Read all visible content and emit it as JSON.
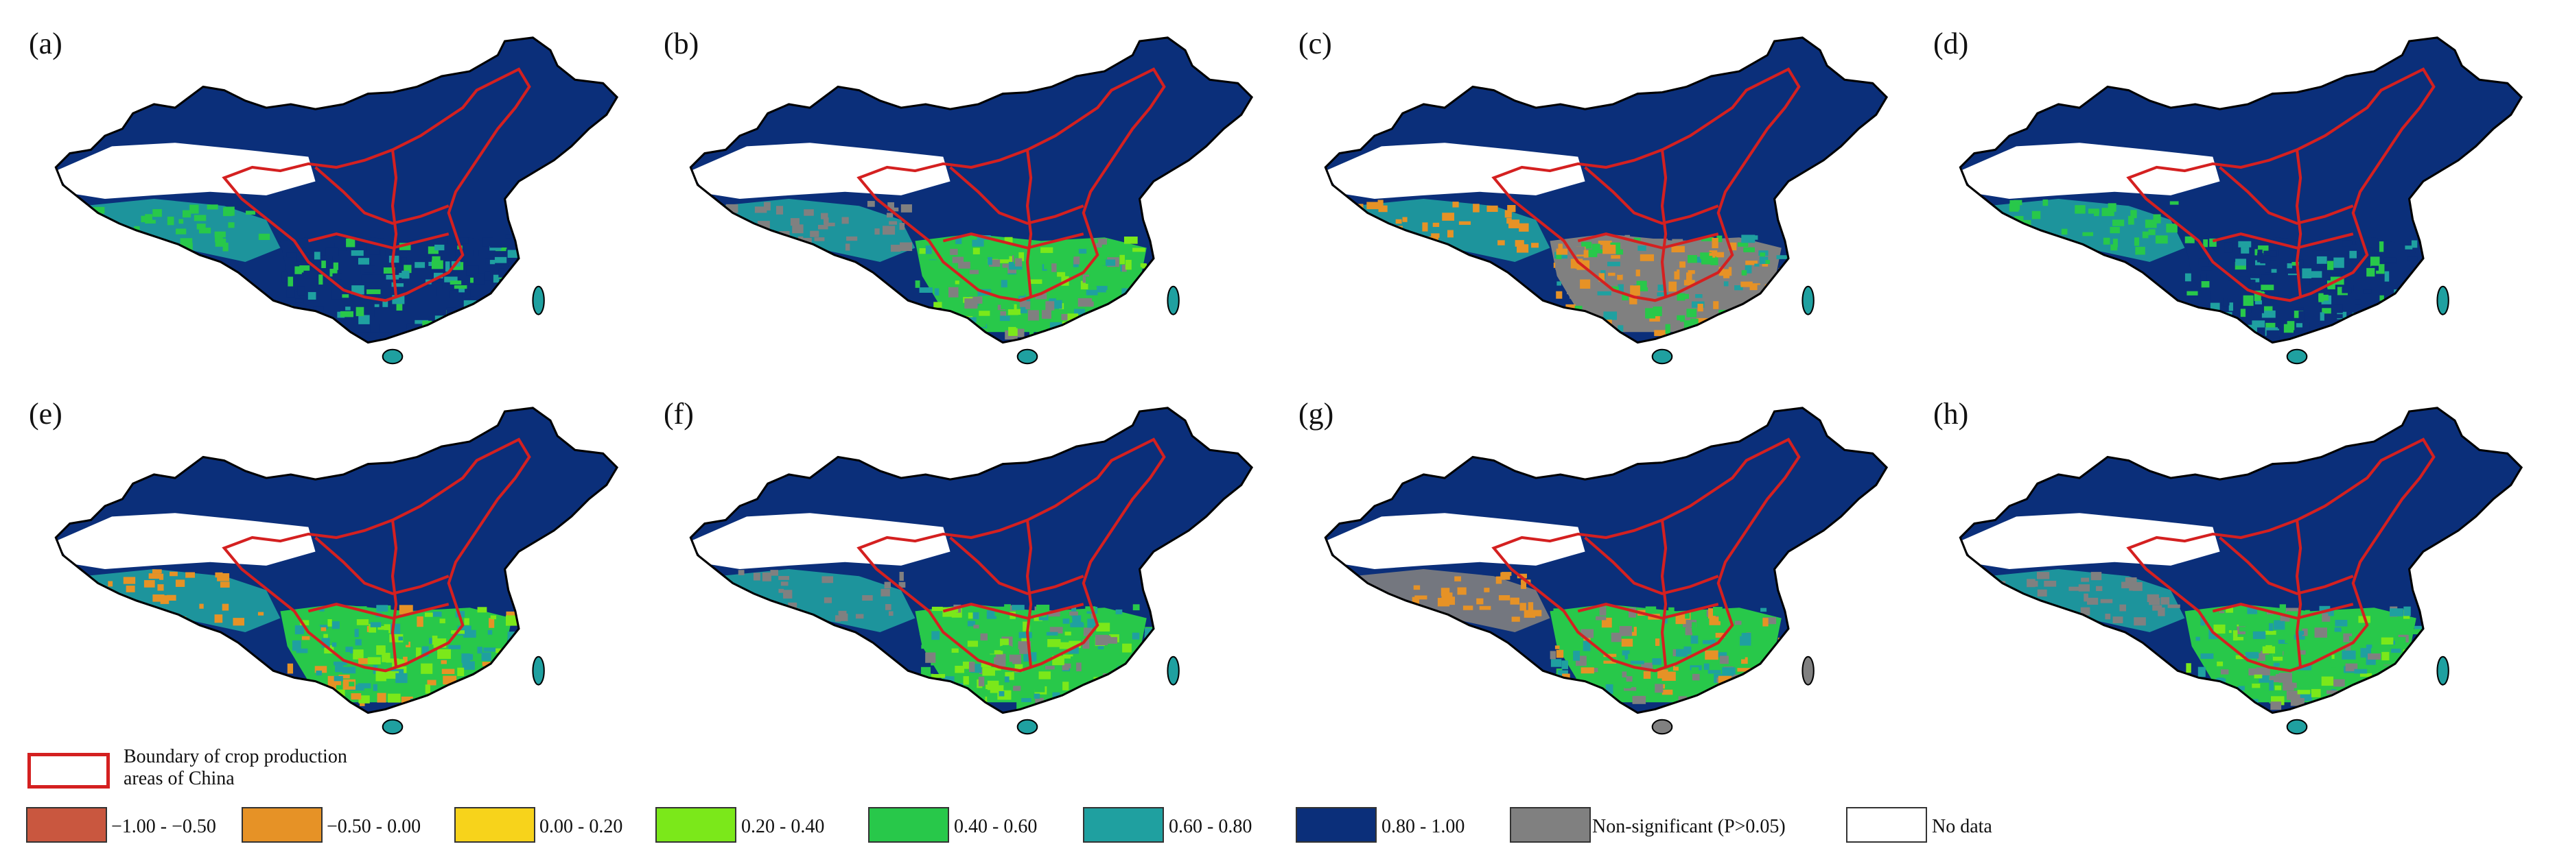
{
  "panels": [
    {
      "label": "(a)",
      "pattern": [
        "#0b2f7a",
        "#0b2f7a",
        "#0b2f7a",
        "#1fa0a0",
        "#28c84a"
      ]
    },
    {
      "label": "(b)",
      "pattern": [
        "#0b2f7a",
        "#28c84a",
        "#7be81a",
        "#1fa0a0",
        "#808080"
      ]
    },
    {
      "label": "(c)",
      "pattern": [
        "#0b2f7a",
        "#808080",
        "#28c84a",
        "#1fa0a0",
        "#e69226"
      ]
    },
    {
      "label": "(d)",
      "pattern": [
        "#0b2f7a",
        "#0b2f7a",
        "#0b2f7a",
        "#1fa0a0",
        "#28c84a"
      ]
    },
    {
      "label": "(e)",
      "pattern": [
        "#0b2f7a",
        "#28c84a",
        "#7be81a",
        "#1fa0a0",
        "#e69226"
      ]
    },
    {
      "label": "(f)",
      "pattern": [
        "#0b2f7a",
        "#28c84a",
        "#7be81a",
        "#1fa0a0",
        "#808080"
      ]
    },
    {
      "label": "(g)",
      "pattern": [
        "#0b2f7a",
        "#28c84a",
        "#1fa0a0",
        "#808080",
        "#e69226"
      ]
    },
    {
      "label": "(h)",
      "pattern": [
        "#0b2f7a",
        "#28c84a",
        "#7be81a",
        "#1fa0a0",
        "#808080"
      ]
    }
  ],
  "legend": {
    "boundary_label_line1": "Boundary of crop production",
    "boundary_label_line2": "areas of China",
    "boundary_color": "#d42020",
    "classes": [
      {
        "label": "−1.00 - −0.50",
        "color": "#c9573f"
      },
      {
        "label": "−0.50 - 0.00",
        "color": "#e69226"
      },
      {
        "label": "0.00 - 0.20",
        "color": "#f7d31b"
      },
      {
        "label": "0.20 - 0.40",
        "color": "#7be81a"
      },
      {
        "label": "0.40 - 0.60",
        "color": "#28c84a"
      },
      {
        "label": "0.60 - 0.80",
        "color": "#1fa0a0"
      },
      {
        "label": "0.80 - 1.00",
        "color": "#0b2f7a"
      },
      {
        "label": "Non-significant (P>0.05)",
        "color": "#808080"
      },
      {
        "label": "No data",
        "color": "#ffffff"
      }
    ]
  }
}
